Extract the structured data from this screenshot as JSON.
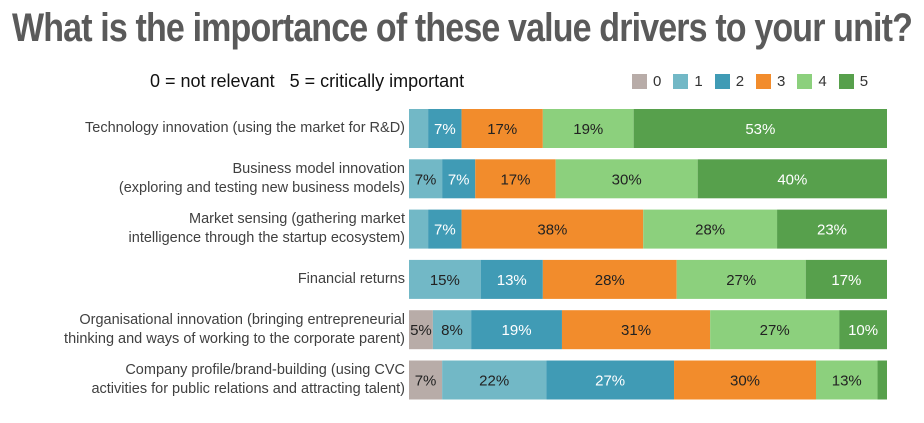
{
  "chart_data": {
    "type": "bar",
    "orientation": "horizontal",
    "stacked": true,
    "title": "What is the importance of these value drivers to your unit?",
    "subtitle": "0 = not relevant   5 = critically important",
    "legend_position": "top-right",
    "xlim": [
      0,
      100
    ],
    "categories": [
      "Technology innovation (using the market for R&D)",
      "Business model innovation\n(exploring and testing new business models)",
      "Market sensing (gathering market\nintelligence through the startup ecosystem)",
      "Financial returns",
      "Organisational innovation (bringing entrepreneurial\nthinking and ways of working to the corporate parent)",
      "Company profile/brand-building (using CVC\nactivities for public relations and attracting talent)"
    ],
    "series": [
      {
        "name": "0",
        "color": "#b8aca8",
        "text_color": "#222222",
        "values": [
          0,
          0,
          0,
          0,
          5,
          7
        ]
      },
      {
        "name": "1",
        "color": "#72b8c6",
        "text_color": "#222222",
        "values": [
          4,
          7,
          4,
          15,
          8,
          22
        ]
      },
      {
        "name": "2",
        "color": "#409bb5",
        "text_color": "#ffffff",
        "values": [
          7,
          7,
          7,
          13,
          19,
          27
        ]
      },
      {
        "name": "3",
        "color": "#f28c2c",
        "text_color": "#222222",
        "values": [
          17,
          17,
          38,
          28,
          31,
          30
        ]
      },
      {
        "name": "4",
        "color": "#8cd07d",
        "text_color": "#222222",
        "values": [
          19,
          30,
          28,
          27,
          27,
          13
        ]
      },
      {
        "name": "5",
        "color": "#57a04c",
        "text_color": "#ffffff",
        "values": [
          53,
          40,
          23,
          17,
          10,
          2
        ]
      }
    ],
    "labeled_min": 5
  }
}
